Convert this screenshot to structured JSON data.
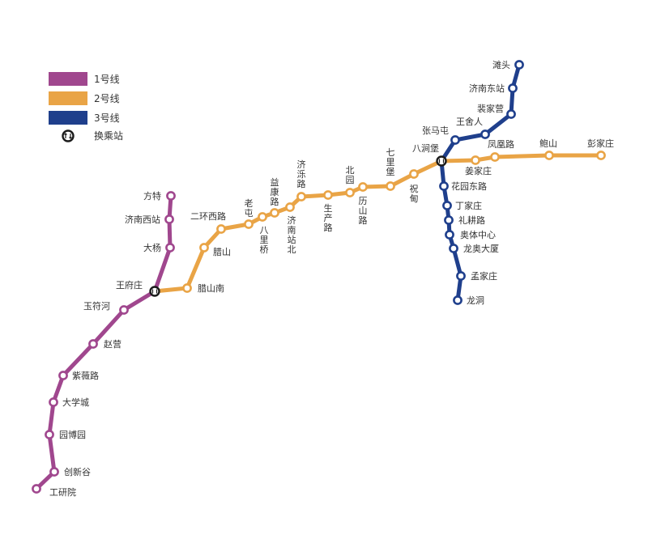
{
  "legend": {
    "line1_label": "1号线",
    "line2_label": "2号线",
    "line3_label": "3号线",
    "transfer_label": "换乘站"
  },
  "colors": {
    "line1": "#A0478E",
    "line2": "#E9A446",
    "line3": "#1F3F8C",
    "transfer": "#1a1a1a"
  },
  "lines": {
    "line1": [
      {
        "key": "fangte",
        "name": "方特"
      },
      {
        "key": "jinanxi",
        "name": "济南西站"
      },
      {
        "key": "dayang",
        "name": "大杨"
      },
      {
        "key": "wangfuzhuang",
        "name": "王府庄",
        "transfer": true
      },
      {
        "key": "yufuhe",
        "name": "玉符河"
      },
      {
        "key": "zhaoying",
        "name": "赵营"
      },
      {
        "key": "ziweilu",
        "name": "紫薇路"
      },
      {
        "key": "daxuecheng",
        "name": "大学城"
      },
      {
        "key": "yuanboyuan",
        "name": "园博园"
      },
      {
        "key": "chuangxingu",
        "name": "创新谷"
      },
      {
        "key": "gongyanyuan",
        "name": "工研院"
      }
    ],
    "line2": [
      {
        "key": "wangfuzhuang",
        "name": "王府庄",
        "transfer": true
      },
      {
        "key": "lashannan",
        "name": "腊山南"
      },
      {
        "key": "lashan",
        "name": "腊山"
      },
      {
        "key": "erhuanxilu",
        "name": "二环西路"
      },
      {
        "key": "laotun",
        "name": "老屯"
      },
      {
        "key": "baliqiao",
        "name": "八里桥"
      },
      {
        "key": "yikanglu",
        "name": "益康路"
      },
      {
        "key": "jinanzhanbei",
        "name": "济南站北"
      },
      {
        "key": "jiluolu",
        "name": "济泺路"
      },
      {
        "key": "shengchanlu",
        "name": "生产路"
      },
      {
        "key": "beiyuan",
        "name": "北园"
      },
      {
        "key": "lishanlu",
        "name": "历山路"
      },
      {
        "key": "qilipu",
        "name": "七里堡"
      },
      {
        "key": "zhudian",
        "name": "祝甸"
      },
      {
        "key": "badongpu",
        "name": "八涧堡",
        "transfer": true
      },
      {
        "key": "jiangjiazhuang",
        "name": "姜家庄"
      },
      {
        "key": "fenghuanglu",
        "name": "凤凰路"
      },
      {
        "key": "baoshan",
        "name": "鲍山"
      },
      {
        "key": "pengjiazhuang",
        "name": "彭家庄"
      }
    ],
    "line3": [
      {
        "key": "tantou",
        "name": "滩头"
      },
      {
        "key": "jinandong",
        "name": "济南东站"
      },
      {
        "key": "peijiaying",
        "name": "裴家营"
      },
      {
        "key": "wangsheren",
        "name": "王舍人"
      },
      {
        "key": "zhangmatun",
        "name": "张马屯"
      },
      {
        "key": "badongpu",
        "name": "八涧堡",
        "transfer": true
      },
      {
        "key": "huayuandonglu",
        "name": "花园东路"
      },
      {
        "key": "dingjiazhuang",
        "name": "丁家庄"
      },
      {
        "key": "ligenglu",
        "name": "礼耕路"
      },
      {
        "key": "aotizhongxin",
        "name": "奥体中心"
      },
      {
        "key": "longaodasha",
        "name": "龙奥大厦"
      },
      {
        "key": "mengjiazhuang",
        "name": "孟家庄"
      },
      {
        "key": "longdong",
        "name": "龙洞"
      }
    ]
  }
}
